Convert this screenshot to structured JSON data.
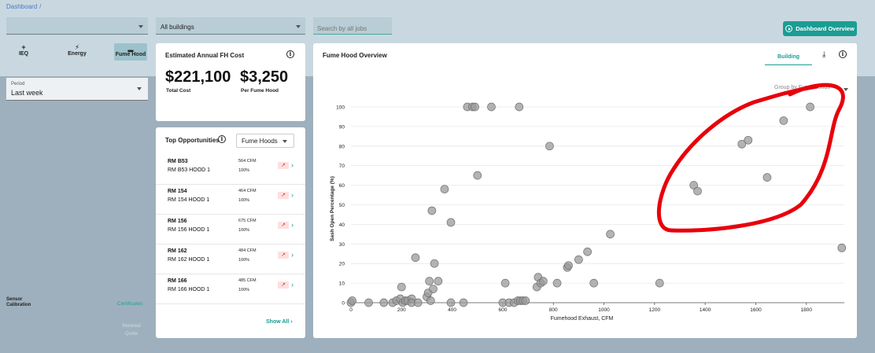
{
  "breadcrumb": {
    "root": "Dashboard",
    "sep": "/"
  },
  "filters": {
    "first_value": "",
    "building_value": "All buildings",
    "search_placeholder": "Search by all jobs"
  },
  "overview_button_label": "Dashboard Overview",
  "modes": [
    {
      "label": "IEQ",
      "icon": "plus-icon"
    },
    {
      "label": "Energy",
      "icon": "bolt-icon"
    },
    {
      "label": "Fume Hood",
      "icon": "fume-hood-icon"
    }
  ],
  "period": {
    "label": "Period",
    "value": "Last week"
  },
  "sidebar": {
    "sensor_calibration": "Sensor Calibration",
    "certificates": "Certificates",
    "renewal_quote": "Renewal Quote"
  },
  "cost_card": {
    "title": "Estimated Annual FH Cost",
    "total_value": "$221,100",
    "total_label": "Total Cost",
    "per_hood_value": "$3,250",
    "per_hood_label": "Per Fume Hood"
  },
  "opportunities": {
    "title": "Top Opportunities",
    "filter": "Fume Hoods",
    "rows": [
      {
        "room": "RM B53",
        "hood": "RM B53 HOOD 1",
        "cfm": "564 CFM",
        "pct": "100%"
      },
      {
        "room": "RM 154",
        "hood": "RM 154 HOOD 1",
        "cfm": "464 CFM",
        "pct": "100%"
      },
      {
        "room": "RM 156",
        "hood": "RM 156 HOOD 1",
        "cfm": "675 CFM",
        "pct": "100%"
      },
      {
        "room": "RM 162",
        "hood": "RM 162 HOOD 1",
        "cfm": "484 CFM",
        "pct": "100%"
      },
      {
        "room": "RM 166",
        "hood": "RM 166 HOOD 1",
        "cfm": "485 CFM",
        "pct": "100%"
      }
    ],
    "show_all": "Show All"
  },
  "chart_card": {
    "title": "Fume Hood Overview",
    "tab": "Building",
    "dropdown_value": "Group by Fume Hoods"
  },
  "annotation_color": "#e8000b",
  "chart_data": {
    "type": "scatter",
    "title": "Fume Hood Overview",
    "xlabel": "Fumehood Exhaust, CFM",
    "ylabel": "Sash Open Percentage (%)",
    "xlim": [
      0,
      1950
    ],
    "ylim": [
      0,
      100
    ],
    "xticks": [
      0,
      200,
      400,
      600,
      800,
      1000,
      1200,
      1400,
      1600,
      1800
    ],
    "yticks": [
      0,
      10,
      20,
      30,
      40,
      50,
      60,
      70,
      80,
      90,
      100
    ],
    "points": [
      [
        0,
        0
      ],
      [
        5,
        1
      ],
      [
        70,
        0
      ],
      [
        130,
        0
      ],
      [
        165,
        0
      ],
      [
        180,
        1
      ],
      [
        195,
        2
      ],
      [
        200,
        8
      ],
      [
        205,
        0
      ],
      [
        215,
        1
      ],
      [
        225,
        1
      ],
      [
        240,
        2
      ],
      [
        255,
        23
      ],
      [
        240,
        0
      ],
      [
        265,
        0
      ],
      [
        300,
        3
      ],
      [
        305,
        5
      ],
      [
        310,
        11
      ],
      [
        315,
        1
      ],
      [
        320,
        47
      ],
      [
        325,
        7
      ],
      [
        330,
        20
      ],
      [
        345,
        11
      ],
      [
        370,
        58
      ],
      [
        395,
        41
      ],
      [
        395,
        0
      ],
      [
        445,
        0
      ],
      [
        460,
        100
      ],
      [
        480,
        100
      ],
      [
        490,
        100
      ],
      [
        500,
        65
      ],
      [
        555,
        100
      ],
      [
        600,
        0
      ],
      [
        610,
        10
      ],
      [
        625,
        0
      ],
      [
        645,
        0
      ],
      [
        660,
        1
      ],
      [
        670,
        1
      ],
      [
        680,
        1
      ],
      [
        665,
        100
      ],
      [
        690,
        1
      ],
      [
        735,
        8
      ],
      [
        740,
        13
      ],
      [
        750,
        10
      ],
      [
        760,
        11
      ],
      [
        785,
        80
      ],
      [
        815,
        10
      ],
      [
        855,
        18
      ],
      [
        860,
        19
      ],
      [
        900,
        22
      ],
      [
        935,
        26
      ],
      [
        960,
        10
      ],
      [
        1025,
        35
      ],
      [
        1220,
        10
      ],
      [
        1355,
        60
      ],
      [
        1370,
        57
      ],
      [
        1545,
        81
      ],
      [
        1570,
        83
      ],
      [
        1645,
        64
      ],
      [
        1710,
        93
      ],
      [
        1815,
        100
      ],
      [
        1940,
        28
      ]
    ]
  }
}
